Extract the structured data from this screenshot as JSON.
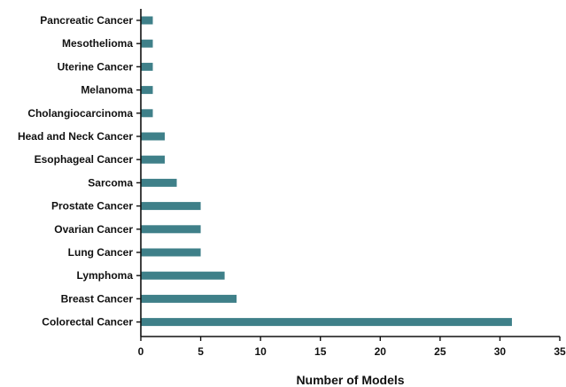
{
  "chart_data": {
    "type": "bar",
    "orientation": "horizontal",
    "categories": [
      "Pancreatic Cancer",
      "Mesothelioma",
      "Uterine Cancer",
      "Melanoma",
      "Cholangiocarcinoma",
      "Head and Neck Cancer",
      "Esophageal Cancer",
      "Sarcoma",
      "Prostate Cancer",
      "Ovarian Cancer",
      "Lung Cancer",
      "Lymphoma",
      "Breast Cancer",
      "Colorectal Cancer"
    ],
    "values": [
      1,
      1,
      1,
      1,
      1,
      2,
      2,
      3,
      5,
      5,
      5,
      7,
      8,
      31
    ],
    "title": "",
    "xlabel": "Number of Models",
    "ylabel": "",
    "xlim": [
      0,
      35
    ],
    "xticks": [
      "0",
      "5",
      "10",
      "15",
      "20",
      "25",
      "30",
      "35"
    ],
    "grid": false,
    "legend": "none",
    "colors": {
      "bar": "#3f8089",
      "axis": "#111111",
      "text": "#111111"
    }
  }
}
